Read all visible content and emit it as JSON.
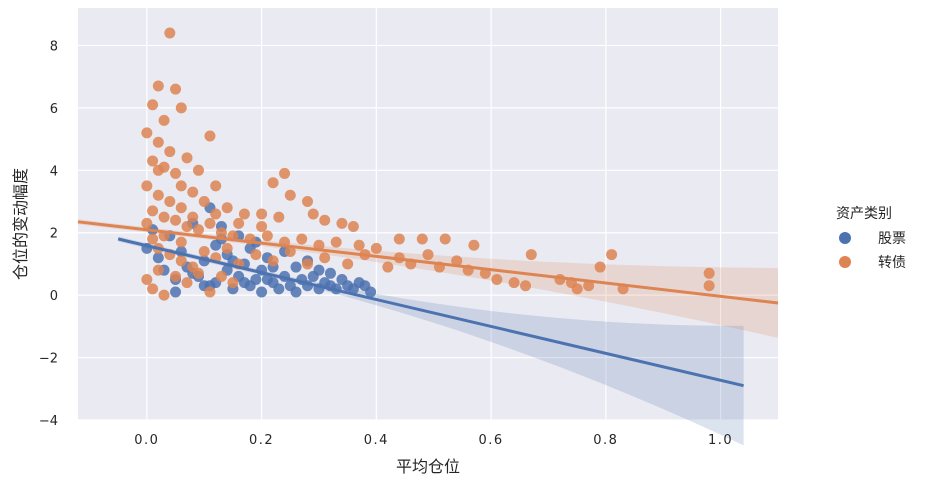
{
  "chart_data": {
    "type": "scatter",
    "title": "",
    "xlabel": "平均仓位",
    "ylabel": "仓位的变动幅度",
    "xlim": [
      -0.12,
      1.1
    ],
    "ylim": [
      -4,
      9.2
    ],
    "xticks": [
      0.0,
      0.2,
      0.4,
      0.6,
      0.8,
      1.0
    ],
    "xtick_labels": [
      "0.0",
      "0.2",
      "0.4",
      "0.6",
      "0.8",
      "1.0"
    ],
    "yticks": [
      -4,
      -2,
      0,
      2,
      4,
      6,
      8
    ],
    "ytick_labels": [
      "−4",
      "−2",
      "0",
      "2",
      "4",
      "6",
      "8"
    ],
    "grid": true,
    "legend": {
      "title": "资产类别",
      "placement": "right"
    },
    "series": [
      {
        "name": "股票",
        "color": "#4c72b0",
        "points": [
          [
            0.0,
            1.5
          ],
          [
            0.01,
            2.1
          ],
          [
            0.02,
            1.2
          ],
          [
            0.03,
            0.8
          ],
          [
            0.04,
            1.9
          ],
          [
            0.05,
            0.5
          ],
          [
            0.05,
            0.1
          ],
          [
            0.06,
            1.4
          ],
          [
            0.07,
            0.9
          ],
          [
            0.08,
            2.3
          ],
          [
            0.09,
            0.6
          ],
          [
            0.1,
            1.1
          ],
          [
            0.1,
            0.3
          ],
          [
            0.11,
            2.8
          ],
          [
            0.12,
            1.6
          ],
          [
            0.12,
            0.4
          ],
          [
            0.13,
            2.2
          ],
          [
            0.14,
            0.8
          ],
          [
            0.14,
            1.3
          ],
          [
            0.15,
            0.2
          ],
          [
            0.16,
            1.9
          ],
          [
            0.16,
            0.6
          ],
          [
            0.17,
            1.0
          ],
          [
            0.18,
            0.3
          ],
          [
            0.18,
            1.5
          ],
          [
            0.19,
            0.5
          ],
          [
            0.2,
            0.8
          ],
          [
            0.2,
            0.1
          ],
          [
            0.21,
            1.2
          ],
          [
            0.22,
            0.4
          ],
          [
            0.22,
            0.9
          ],
          [
            0.23,
            0.2
          ],
          [
            0.24,
            1.4
          ],
          [
            0.24,
            0.6
          ],
          [
            0.25,
            0.3
          ],
          [
            0.26,
            0.9
          ],
          [
            0.26,
            0.1
          ],
          [
            0.27,
            0.5
          ],
          [
            0.28,
            0.3
          ],
          [
            0.28,
            1.1
          ],
          [
            0.29,
            0.6
          ],
          [
            0.3,
            0.2
          ],
          [
            0.3,
            0.8
          ],
          [
            0.31,
            0.4
          ],
          [
            0.32,
            0.3
          ],
          [
            0.32,
            0.7
          ],
          [
            0.33,
            0.2
          ],
          [
            0.34,
            0.5
          ],
          [
            0.35,
            0.3
          ],
          [
            0.36,
            0.2
          ],
          [
            0.37,
            0.4
          ],
          [
            0.38,
            0.3
          ],
          [
            0.39,
            0.1
          ],
          [
            0.08,
            0.7
          ],
          [
            0.11,
            0.3
          ],
          [
            0.13,
            1.8
          ],
          [
            0.15,
            1.1
          ],
          [
            0.17,
            0.4
          ],
          [
            0.19,
            1.7
          ],
          [
            0.21,
            0.5
          ]
        ],
        "fit": {
          "x": [
            -0.05,
            1.04
          ],
          "y": [
            1.8,
            -2.9
          ]
        }
      },
      {
        "name": "转债",
        "color": "#dd8452",
        "points": [
          [
            0.04,
            8.4
          ],
          [
            0.02,
            6.7
          ],
          [
            0.05,
            6.6
          ],
          [
            0.06,
            6.0
          ],
          [
            0.01,
            6.1
          ],
          [
            0.03,
            5.6
          ],
          [
            0.11,
            5.1
          ],
          [
            0.0,
            5.2
          ],
          [
            0.02,
            4.9
          ],
          [
            0.04,
            4.6
          ],
          [
            0.07,
            4.4
          ],
          [
            0.09,
            4.0
          ],
          [
            0.01,
            4.3
          ],
          [
            0.03,
            4.1
          ],
          [
            0.05,
            3.9
          ],
          [
            0.24,
            3.9
          ],
          [
            0.22,
            3.6
          ],
          [
            0.12,
            3.5
          ],
          [
            0.06,
            3.5
          ],
          [
            0.08,
            3.3
          ],
          [
            0.25,
            3.2
          ],
          [
            0.28,
            3.0
          ],
          [
            0.1,
            3.0
          ],
          [
            0.02,
            3.2
          ],
          [
            0.04,
            3.0
          ],
          [
            0.06,
            2.8
          ],
          [
            0.14,
            2.8
          ],
          [
            0.17,
            2.6
          ],
          [
            0.2,
            2.6
          ],
          [
            0.23,
            2.5
          ],
          [
            0.29,
            2.6
          ],
          [
            0.31,
            2.4
          ],
          [
            0.34,
            2.3
          ],
          [
            0.36,
            2.2
          ],
          [
            0.01,
            2.7
          ],
          [
            0.03,
            2.5
          ],
          [
            0.05,
            2.4
          ],
          [
            0.07,
            2.2
          ],
          [
            0.09,
            2.1
          ],
          [
            0.11,
            2.3
          ],
          [
            0.13,
            2.0
          ],
          [
            0.15,
            1.9
          ],
          [
            0.18,
            1.8
          ],
          [
            0.21,
            1.9
          ],
          [
            0.24,
            1.7
          ],
          [
            0.27,
            1.8
          ],
          [
            0.3,
            1.6
          ],
          [
            0.33,
            1.7
          ],
          [
            0.37,
            1.6
          ],
          [
            0.4,
            1.5
          ],
          [
            0.44,
            1.8
          ],
          [
            0.48,
            1.8
          ],
          [
            0.52,
            1.8
          ],
          [
            0.57,
            1.6
          ],
          [
            0.44,
            1.2
          ],
          [
            0.46,
            1.0
          ],
          [
            0.49,
            1.3
          ],
          [
            0.51,
            0.9
          ],
          [
            0.54,
            1.1
          ],
          [
            0.56,
            0.8
          ],
          [
            0.59,
            0.7
          ],
          [
            0.61,
            0.5
          ],
          [
            0.64,
            0.4
          ],
          [
            0.67,
            1.3
          ],
          [
            0.66,
            0.3
          ],
          [
            0.72,
            0.5
          ],
          [
            0.74,
            0.4
          ],
          [
            0.75,
            0.2
          ],
          [
            0.77,
            0.3
          ],
          [
            0.79,
            0.9
          ],
          [
            0.81,
            1.3
          ],
          [
            0.83,
            0.2
          ],
          [
            0.98,
            0.7
          ],
          [
            0.98,
            0.3
          ],
          [
            0.02,
            1.5
          ],
          [
            0.04,
            1.3
          ],
          [
            0.06,
            1.1
          ],
          [
            0.08,
            0.9
          ],
          [
            0.1,
            1.4
          ],
          [
            0.12,
            1.2
          ],
          [
            0.14,
            1.5
          ],
          [
            0.16,
            1.0
          ],
          [
            0.19,
            1.3
          ],
          [
            0.22,
            1.1
          ],
          [
            0.25,
            1.4
          ],
          [
            0.28,
            1.0
          ],
          [
            0.31,
            1.2
          ],
          [
            0.35,
            1.0
          ],
          [
            0.38,
            1.3
          ],
          [
            0.42,
            0.9
          ],
          [
            0.0,
            0.5
          ],
          [
            0.01,
            0.2
          ],
          [
            0.02,
            0.8
          ],
          [
            0.03,
            0.0
          ],
          [
            0.05,
            0.6
          ],
          [
            0.07,
            0.4
          ],
          [
            0.09,
            0.7
          ],
          [
            0.11,
            0.1
          ],
          [
            0.13,
            0.6
          ],
          [
            0.15,
            0.4
          ],
          [
            0.01,
            1.8
          ],
          [
            0.0,
            3.5
          ],
          [
            0.02,
            4.0
          ],
          [
            0.0,
            2.3
          ],
          [
            0.03,
            1.9
          ],
          [
            0.06,
            1.7
          ],
          [
            0.08,
            2.5
          ],
          [
            0.12,
            2.6
          ],
          [
            0.16,
            2.3
          ],
          [
            0.2,
            2.2
          ]
        ],
        "fit": {
          "x": [
            -0.12,
            1.1
          ],
          "y": [
            2.35,
            -0.25
          ]
        }
      }
    ]
  }
}
